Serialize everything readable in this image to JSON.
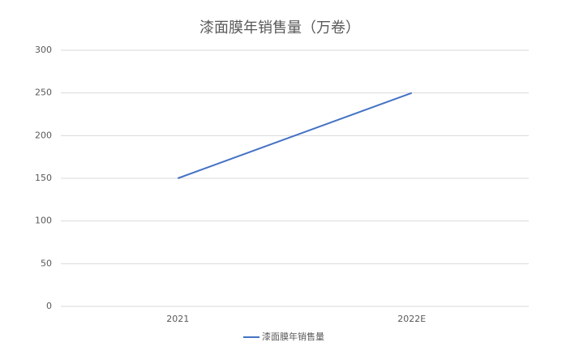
{
  "chart_data": {
    "type": "line",
    "title": "漆面膜年销售量（万卷）",
    "categories": [
      "2021",
      "2022E"
    ],
    "series": [
      {
        "name": "漆面膜年销售量",
        "color": "#4472c4",
        "values": [
          150,
          250
        ]
      }
    ],
    "ylim": [
      0,
      300
    ],
    "yticks": [
      0,
      50,
      100,
      150,
      200,
      250,
      300
    ],
    "grid": true,
    "legend": "bottom"
  }
}
